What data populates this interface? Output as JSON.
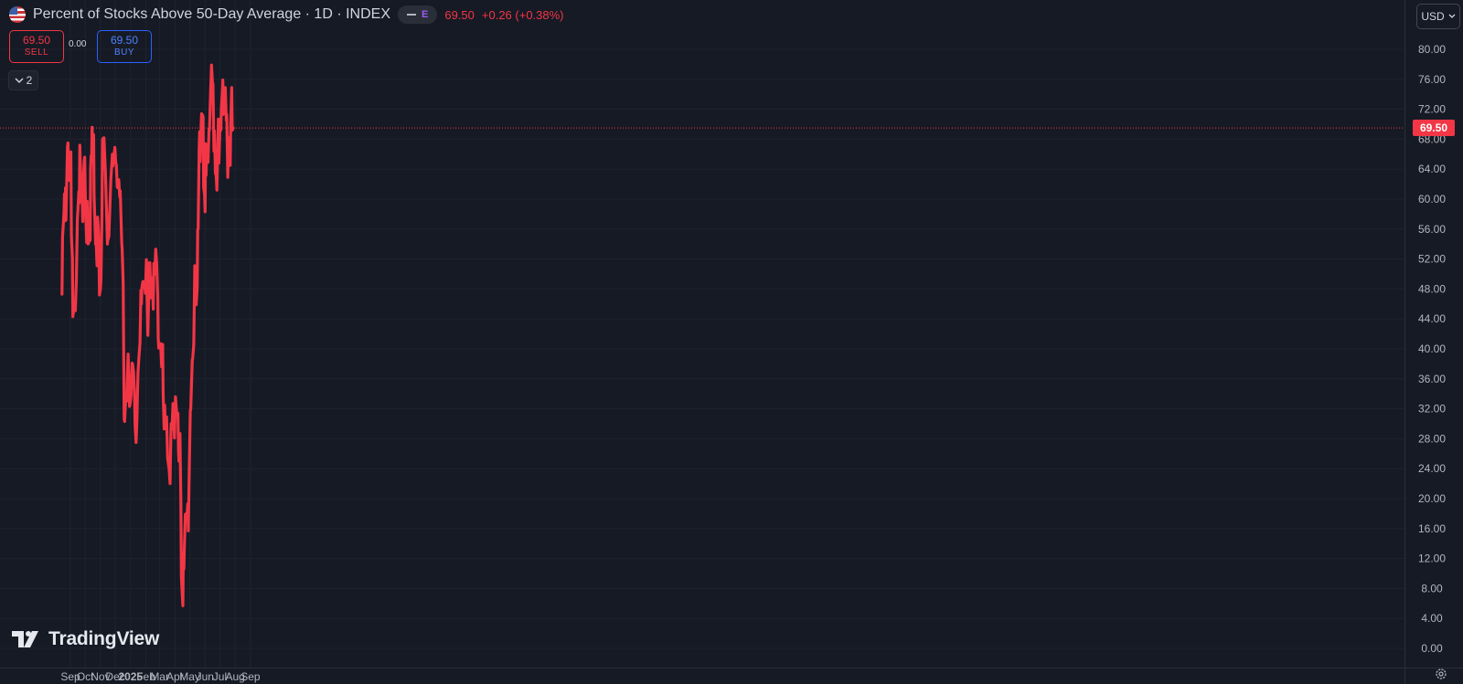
{
  "header": {
    "title": "Percent of Stocks Above 50-Day Average · 1D · INDEX",
    "pill_label": "E",
    "last_price": "69.50",
    "change": "+0.26 (+0.38%)"
  },
  "trade": {
    "sell_price": "69.50",
    "sell_label": "SELL",
    "spread": "0.00",
    "buy_price": "69.50",
    "buy_label": "BUY"
  },
  "indicators_toggle": "2",
  "currency": "USD",
  "logo_text": "TradingView",
  "price_label": "69.50",
  "colors": {
    "background": "#161a25",
    "line": "#f23645",
    "grid": "#1f2330",
    "axis_text": "#b2b5be",
    "buy": "#2962ff"
  },
  "chart_data": {
    "type": "line",
    "title": "Percent of Stocks Above 50-Day Average",
    "interval": "1D",
    "ylim": [
      0,
      82
    ],
    "y_ticks": [
      "0.00",
      "4.00",
      "8.00",
      "12.00",
      "16.00",
      "20.00",
      "24.00",
      "28.00",
      "32.00",
      "36.00",
      "40.00",
      "44.00",
      "48.00",
      "52.00",
      "56.00",
      "60.00",
      "64.00",
      "68.00",
      "72.00",
      "76.00",
      "80.00"
    ],
    "x_tick_labels": [
      "Sep",
      "Oct",
      "Nov",
      "Dec",
      "2025",
      "Feb",
      "Mar",
      "Apr",
      "May",
      "Jun",
      "Jul",
      "Aug",
      "Sep"
    ],
    "x_tick_dates": [
      "2024-09-01",
      "2024-10-01",
      "2024-11-01",
      "2024-12-01",
      "2025-01-01",
      "2025-02-01",
      "2025-03-01",
      "2025-04-01",
      "2025-05-01",
      "2025-06-01",
      "2025-07-01",
      "2025-08-01",
      "2025-09-01"
    ],
    "last_value": 69.5,
    "grid": true,
    "series": [
      {
        "color": "#f23645",
        "points": [
          [
            "2024-08-15",
            47.3
          ],
          [
            "2024-08-16",
            55.0
          ],
          [
            "2024-08-19",
            58.2
          ],
          [
            "2024-08-20",
            60.7
          ],
          [
            "2024-08-21",
            57.1
          ],
          [
            "2024-08-22",
            61.5
          ],
          [
            "2024-08-23",
            57.2
          ],
          [
            "2024-08-26",
            67.0
          ],
          [
            "2024-08-27",
            67.5
          ],
          [
            "2024-08-28",
            65.2
          ],
          [
            "2024-08-29",
            62.5
          ],
          [
            "2024-08-30",
            64.3
          ],
          [
            "2024-09-02",
            66.3
          ],
          [
            "2024-09-03",
            55.2
          ],
          [
            "2024-09-05",
            52.1
          ],
          [
            "2024-09-06",
            44.3
          ],
          [
            "2024-09-09",
            45.9
          ],
          [
            "2024-09-11",
            45.1
          ],
          [
            "2024-09-13",
            49.1
          ],
          [
            "2024-09-15",
            57.4
          ],
          [
            "2024-09-16",
            58.3
          ],
          [
            "2024-09-18",
            61.0
          ],
          [
            "2024-09-19",
            59.5
          ],
          [
            "2024-09-20",
            67.2
          ],
          [
            "2024-09-22",
            62.8
          ],
          [
            "2024-09-23",
            61.0
          ],
          [
            "2024-09-24",
            61.6
          ],
          [
            "2024-09-26",
            57.0
          ],
          [
            "2024-09-27",
            62.6
          ],
          [
            "2024-09-29",
            65.0
          ],
          [
            "2024-09-30",
            65.6
          ],
          [
            "2024-10-02",
            58.0
          ],
          [
            "2024-10-04",
            54.2
          ],
          [
            "2024-10-05",
            59.7
          ],
          [
            "2024-10-07",
            54.0
          ],
          [
            "2024-10-08",
            54.2
          ],
          [
            "2024-10-10",
            55.7
          ],
          [
            "2024-10-11",
            54.5
          ],
          [
            "2024-10-12",
            64.1
          ],
          [
            "2024-10-13",
            65.8
          ],
          [
            "2024-10-14",
            65.4
          ],
          [
            "2024-10-15",
            69.6
          ],
          [
            "2024-10-16",
            68.2
          ],
          [
            "2024-10-18",
            68.6
          ],
          [
            "2024-10-19",
            60.5
          ],
          [
            "2024-10-22",
            54.0
          ],
          [
            "2024-10-23",
            54.4
          ],
          [
            "2024-10-25",
            51.1
          ],
          [
            "2024-10-26",
            57.6
          ],
          [
            "2024-10-27",
            56.7
          ],
          [
            "2024-10-28",
            55.4
          ],
          [
            "2024-10-29",
            51.7
          ],
          [
            "2024-10-30",
            47.2
          ],
          [
            "2024-11-01",
            48.1
          ],
          [
            "2024-11-02",
            49.1
          ],
          [
            "2024-11-04",
            57.5
          ],
          [
            "2024-11-05",
            67.9
          ],
          [
            "2024-11-06",
            68.1
          ],
          [
            "2024-11-07",
            67.3
          ],
          [
            "2024-11-08",
            68.2
          ],
          [
            "2024-11-11",
            63.5
          ],
          [
            "2024-11-12",
            61.4
          ],
          [
            "2024-11-15",
            54.0
          ],
          [
            "2024-11-16",
            54.8
          ],
          [
            "2024-11-17",
            54.7
          ],
          [
            "2024-11-18",
            55.1
          ],
          [
            "2024-11-22",
            62.5
          ],
          [
            "2024-11-25",
            66.0
          ],
          [
            "2024-11-26",
            64.4
          ],
          [
            "2024-11-28",
            65.5
          ],
          [
            "2024-11-30",
            66.9
          ],
          [
            "2024-12-01",
            66.0
          ],
          [
            "2024-12-02",
            64.8
          ],
          [
            "2024-12-03",
            64.6
          ],
          [
            "2024-12-05",
            61.6
          ],
          [
            "2024-12-06",
            61.5
          ],
          [
            "2024-12-08",
            62.6
          ],
          [
            "2024-12-10",
            60.3
          ],
          [
            "2024-12-11",
            61.1
          ],
          [
            "2024-12-14",
            54.2
          ],
          [
            "2024-12-15",
            53.3
          ],
          [
            "2024-12-17",
            48.8
          ],
          [
            "2024-12-19",
            30.6
          ],
          [
            "2024-12-20",
            30.3
          ],
          [
            "2024-12-22",
            33.2
          ],
          [
            "2024-12-24",
            33.0
          ],
          [
            "2024-12-26",
            37.5
          ],
          [
            "2024-12-27",
            39.3
          ],
          [
            "2024-12-29",
            34.6
          ],
          [
            "2024-12-30",
            32.3
          ],
          [
            "2025-01-01",
            33.1
          ],
          [
            "2025-01-02",
            33.9
          ],
          [
            "2025-01-04",
            38.1
          ],
          [
            "2025-01-05",
            38.0
          ],
          [
            "2025-01-07",
            36.9
          ],
          [
            "2025-01-09",
            34.1
          ],
          [
            "2025-01-10",
            29.8
          ],
          [
            "2025-01-12",
            27.5
          ],
          [
            "2025-01-13",
            28.8
          ],
          [
            "2025-01-14",
            30.9
          ],
          [
            "2025-01-16",
            36.8
          ],
          [
            "2025-01-18",
            39.0
          ],
          [
            "2025-01-20",
            40.8
          ],
          [
            "2025-01-22",
            47.8
          ],
          [
            "2025-01-23",
            46.0
          ],
          [
            "2025-01-24",
            48.2
          ],
          [
            "2025-01-26",
            49.0
          ],
          [
            "2025-01-28",
            48.2
          ],
          [
            "2025-01-30",
            48.2
          ],
          [
            "2025-01-31",
            47.4
          ],
          [
            "2025-02-02",
            51.9
          ],
          [
            "2025-02-03",
            48.2
          ],
          [
            "2025-02-05",
            41.8
          ],
          [
            "2025-02-07",
            47.8
          ],
          [
            "2025-02-08",
            51.5
          ],
          [
            "2025-02-09",
            51.5
          ],
          [
            "2025-02-11",
            46.8
          ],
          [
            "2025-02-12",
            48.9
          ],
          [
            "2025-02-14",
            49.5
          ],
          [
            "2025-02-16",
            45.3
          ],
          [
            "2025-02-17",
            51.4
          ],
          [
            "2025-02-18",
            49.9
          ],
          [
            "2025-02-20",
            51.7
          ],
          [
            "2025-02-21",
            53.3
          ],
          [
            "2025-02-23",
            51.3
          ],
          [
            "2025-02-25",
            47.1
          ],
          [
            "2025-02-26",
            41.5
          ],
          [
            "2025-02-27",
            40.1
          ],
          [
            "2025-03-03",
            40.7
          ],
          [
            "2025-03-05",
            37.6
          ],
          [
            "2025-03-07",
            40.6
          ],
          [
            "2025-03-08",
            34.1
          ],
          [
            "2025-03-10",
            29.3
          ],
          [
            "2025-03-11",
            32.5
          ],
          [
            "2025-03-13",
            29.3
          ],
          [
            "2025-03-15",
            30.9
          ],
          [
            "2025-03-17",
            25.4
          ],
          [
            "2025-03-19",
            24.4
          ],
          [
            "2025-03-20",
            24.0
          ],
          [
            "2025-03-22",
            22.0
          ],
          [
            "2025-03-23",
            25.7
          ],
          [
            "2025-03-24",
            30.0
          ],
          [
            "2025-03-26",
            29.3
          ],
          [
            "2025-03-28",
            32.7
          ],
          [
            "2025-03-29",
            31.8
          ],
          [
            "2025-03-31",
            28.1
          ],
          [
            "2025-04-02",
            33.6
          ],
          [
            "2025-04-03",
            32.5
          ],
          [
            "2025-04-05",
            31.1
          ],
          [
            "2025-04-07",
            31.4
          ],
          [
            "2025-04-08",
            26.3
          ],
          [
            "2025-04-09",
            25.0
          ],
          [
            "2025-04-10",
            25.2
          ],
          [
            "2025-04-11",
            28.7
          ],
          [
            "2025-04-13",
            19.6
          ],
          [
            "2025-04-14",
            9.4
          ],
          [
            "2025-04-16",
            6.8
          ],
          [
            "2025-04-17",
            5.7
          ],
          [
            "2025-04-18",
            12.7
          ],
          [
            "2025-04-19",
            10.6
          ],
          [
            "2025-04-20",
            13.4
          ],
          [
            "2025-04-22",
            17.9
          ],
          [
            "2025-04-24",
            18.0
          ],
          [
            "2025-04-25",
            17.5
          ],
          [
            "2025-04-27",
            19.3
          ],
          [
            "2025-04-28",
            15.7
          ],
          [
            "2025-04-30",
            23.9
          ],
          [
            "2025-05-02",
            31.7
          ],
          [
            "2025-05-03",
            32.0
          ],
          [
            "2025-05-04",
            34.4
          ],
          [
            "2025-05-06",
            38.5
          ],
          [
            "2025-05-07",
            38.8
          ],
          [
            "2025-05-09",
            40.6
          ],
          [
            "2025-05-11",
            51.1
          ],
          [
            "2025-05-12",
            49.5
          ],
          [
            "2025-05-14",
            45.9
          ],
          [
            "2025-05-16",
            48.3
          ],
          [
            "2025-05-17",
            55.9
          ],
          [
            "2025-05-18",
            56.0
          ],
          [
            "2025-05-20",
            66.7
          ],
          [
            "2025-05-21",
            69.0
          ],
          [
            "2025-05-22",
            65.0
          ],
          [
            "2025-05-24",
            70.0
          ],
          [
            "2025-05-25",
            71.4
          ],
          [
            "2025-05-26",
            71.3
          ],
          [
            "2025-05-28",
            71.0
          ],
          [
            "2025-05-29",
            61.6
          ],
          [
            "2025-05-31",
            60.6
          ],
          [
            "2025-06-01",
            58.3
          ],
          [
            "2025-06-02",
            67.4
          ],
          [
            "2025-06-03",
            63.2
          ],
          [
            "2025-06-04",
            66.4
          ],
          [
            "2025-06-06",
            65.0
          ],
          [
            "2025-06-07",
            64.9
          ],
          [
            "2025-06-09",
            69.4
          ],
          [
            "2025-06-10",
            69.2
          ],
          [
            "2025-06-12",
            73.9
          ],
          [
            "2025-06-13",
            75.9
          ],
          [
            "2025-06-14",
            77.9
          ],
          [
            "2025-06-16",
            75.5
          ],
          [
            "2025-06-17",
            75.4
          ],
          [
            "2025-06-19",
            66.4
          ],
          [
            "2025-06-20",
            69.1
          ],
          [
            "2025-06-22",
            63.4
          ],
          [
            "2025-06-23",
            63.6
          ],
          [
            "2025-06-25",
            61.2
          ],
          [
            "2025-06-28",
            70.7
          ],
          [
            "2025-06-29",
            64.8
          ],
          [
            "2025-07-01",
            69.3
          ],
          [
            "2025-07-03",
            69.2
          ],
          [
            "2025-07-04",
            72.0
          ],
          [
            "2025-07-06",
            74.3
          ],
          [
            "2025-07-07",
            75.9
          ],
          [
            "2025-07-08",
            71.3
          ],
          [
            "2025-07-10",
            73.1
          ],
          [
            "2025-07-12",
            74.9
          ],
          [
            "2025-07-14",
            70.5
          ],
          [
            "2025-07-15",
            71.3
          ],
          [
            "2025-07-17",
            62.9
          ],
          [
            "2025-07-18",
            65.4
          ],
          [
            "2025-07-19",
            68.2
          ],
          [
            "2025-07-20",
            65.6
          ],
          [
            "2025-07-22",
            64.5
          ],
          [
            "2025-07-23",
            70.0
          ],
          [
            "2025-07-25",
            74.9
          ],
          [
            "2025-07-26",
            69.2
          ],
          [
            "2025-07-28",
            69.5
          ]
        ]
      }
    ]
  }
}
